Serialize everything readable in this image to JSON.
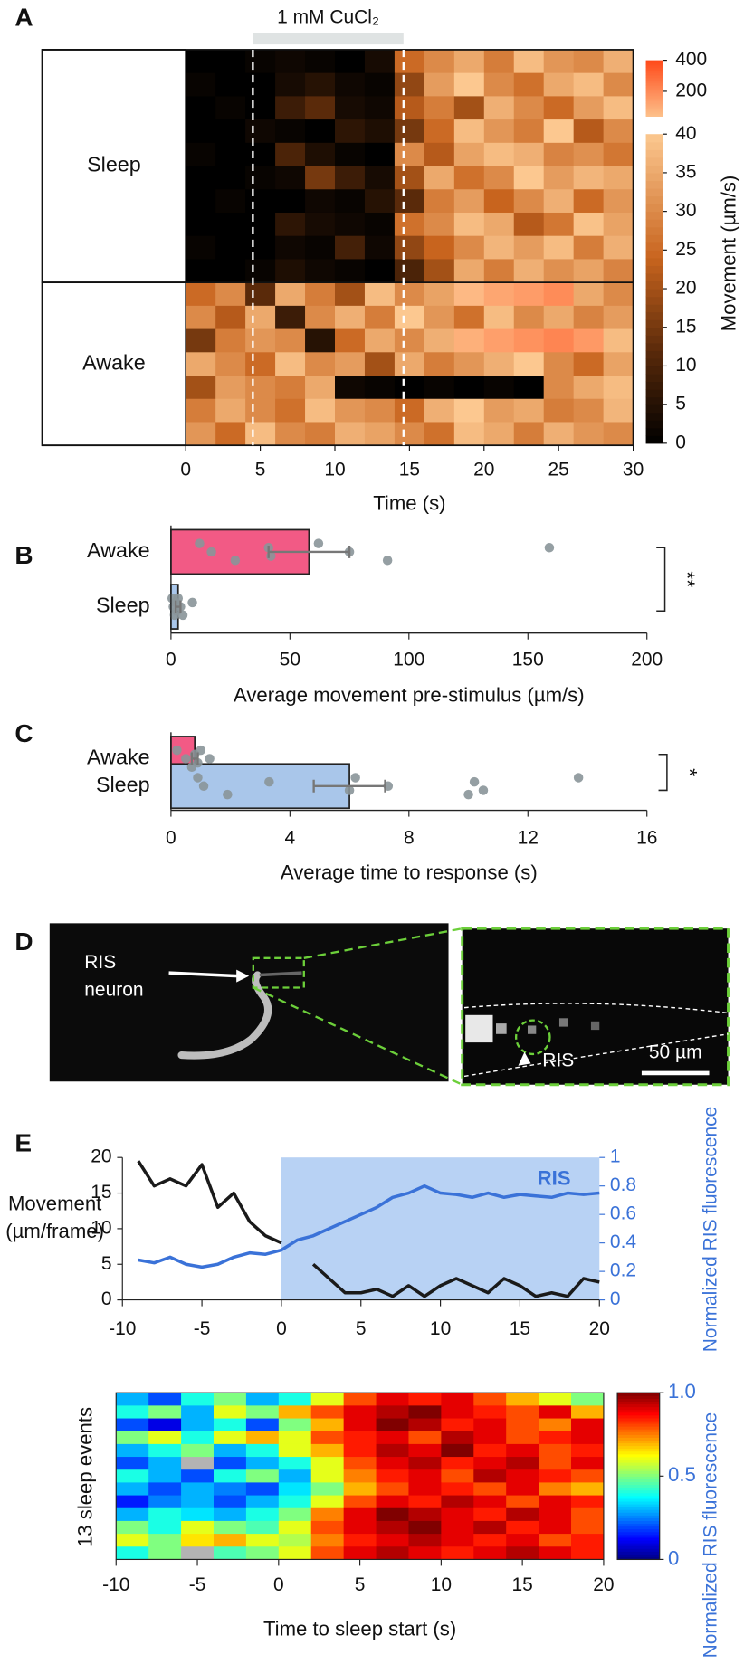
{
  "panel_labels": [
    "A",
    "B",
    "C",
    "D",
    "E"
  ],
  "image_panel": {
    "callout": [
      "RIS",
      "neuron"
    ],
    "inset_label": "RIS",
    "scale_bar": "50 µm"
  },
  "chart_data": [
    {
      "type": "heatmap",
      "annotation": "1 mM CuCl₂",
      "stimulus_window": [
        4.5,
        14.6
      ],
      "xlabel": "Time (s)",
      "xlim": [
        0,
        30
      ],
      "xticks": [
        0,
        5,
        10,
        15,
        20,
        25,
        30
      ],
      "xbins": [
        0,
        2,
        4,
        6,
        8,
        10,
        12,
        14,
        16,
        18,
        20,
        22,
        24,
        26,
        28,
        30
      ],
      "colorbar_label": "Movement (µm/s)",
      "cbar_segments": [
        [
          0,
          40
        ],
        [
          40,
          400
        ]
      ],
      "cbar_ticks": [
        0,
        5,
        10,
        15,
        20,
        25,
        30,
        35,
        40,
        200,
        400
      ],
      "groups": [
        {
          "name": "Sleep",
          "values": [
            [
              0,
              0,
              1,
              2,
              1,
              0,
              3,
              25,
              30,
              35,
              28,
              38,
              32,
              30,
              36
            ],
            [
              1,
              0,
              0,
              3,
              5,
              2,
              1,
              18,
              33,
              40,
              30,
              26,
              35,
              38,
              30
            ],
            [
              0,
              1,
              0,
              8,
              12,
              3,
              2,
              22,
              28,
              20,
              36,
              30,
              25,
              33,
              38
            ],
            [
              0,
              0,
              2,
              1,
              0,
              6,
              4,
              15,
              25,
              38,
              32,
              28,
              40,
              22,
              30
            ],
            [
              1,
              0,
              0,
              10,
              4,
              1,
              0,
              30,
              22,
              34,
              38,
              36,
              29,
              31,
              27
            ],
            [
              0,
              0,
              1,
              2,
              15,
              8,
              3,
              20,
              35,
              26,
              30,
              40,
              33,
              37,
              35
            ],
            [
              0,
              1,
              0,
              0,
              2,
              1,
              5,
              12,
              28,
              33,
              24,
              30,
              36,
              25,
              32
            ],
            [
              0,
              0,
              0,
              6,
              3,
              2,
              1,
              26,
              30,
              38,
              35,
              22,
              27,
              39,
              34
            ],
            [
              1,
              0,
              0,
              2,
              1,
              9,
              2,
              18,
              24,
              30,
              37,
              33,
              38,
              28,
              36
            ],
            [
              0,
              0,
              1,
              4,
              2,
              1,
              0,
              10,
              20,
              35,
              28,
              36,
              31,
              34,
              29
            ]
          ]
        },
        {
          "name": "Awake",
          "values": [
            [
              25,
              30,
              12,
              35,
              28,
              20,
              38,
              30,
              34,
              60,
              120,
              150,
              200,
              35,
              30
            ],
            [
              30,
              22,
              35,
              8,
              30,
              36,
              28,
              40,
              32,
              26,
              38,
              30,
              35,
              29,
              33
            ],
            [
              15,
              28,
              32,
              30,
              5,
              25,
              35,
              30,
              36,
              90,
              140,
              180,
              220,
              160,
              38
            ],
            [
              35,
              30,
              25,
              38,
              30,
              33,
              20,
              35,
              28,
              32,
              36,
              40,
              30,
              25,
              34
            ],
            [
              20,
              33,
              30,
              28,
              35,
              2,
              1,
              0,
              1,
              0,
              1,
              0,
              30,
              35,
              38
            ],
            [
              28,
              35,
              30,
              26,
              38,
              32,
              30,
              25,
              36,
              40,
              33,
              35,
              28,
              30,
              37
            ],
            [
              32,
              25,
              38,
              30,
              28,
              36,
              34,
              30,
              26,
              38,
              35,
              28,
              36,
              32,
              30
            ]
          ]
        }
      ]
    },
    {
      "type": "barh",
      "xlabel": "Average movement pre-stimulus (µm/s)",
      "xlim": [
        0,
        200
      ],
      "xticks": [
        0,
        50,
        100,
        150,
        200
      ],
      "categories": [
        "Awake",
        "Sleep"
      ],
      "values": [
        58,
        3
      ],
      "errors": [
        17,
        1
      ],
      "colors": [
        "#f25a85",
        "#a9c6ea"
      ],
      "points": [
        [
          12,
          17,
          27,
          41,
          42,
          62,
          75,
          91,
          159
        ],
        [
          0.5,
          1,
          1.5,
          2,
          2.5,
          3,
          4,
          5,
          9
        ]
      ],
      "significance": "**"
    },
    {
      "type": "barh",
      "xlabel": "Average time to response (s)",
      "xlim": [
        0,
        16
      ],
      "xticks": [
        0,
        4,
        8,
        12,
        16
      ],
      "categories": [
        "Awake",
        "Sleep"
      ],
      "values": [
        0.8,
        6.0
      ],
      "errors": [
        0.1,
        1.2
      ],
      "colors": [
        "#f25a85",
        "#a9c6ea"
      ],
      "points": [
        [
          0.2,
          0.5,
          0.7,
          0.8,
          0.9,
          1.0,
          1.3
        ],
        [
          0.9,
          1.1,
          1.9,
          3.3,
          6.0,
          6.2,
          7.3,
          10.0,
          10.2,
          10.5,
          13.7
        ]
      ],
      "significance": "*"
    },
    {
      "type": "line",
      "ylabel": [
        "Movement",
        "(µm/frame)"
      ],
      "y2label": "Normalized RIS fluorescence",
      "xlim": [
        -10,
        20
      ],
      "xticks": [
        -10,
        -5,
        0,
        5,
        10,
        15,
        20
      ],
      "ylim": [
        0,
        20
      ],
      "yticks": [
        0,
        5,
        10,
        15,
        20
      ],
      "y2lim": [
        0,
        1
      ],
      "y2ticks": [
        0,
        0.2,
        0.4,
        0.6,
        0.8,
        1
      ],
      "highlight": [
        0,
        20
      ],
      "x": [
        -9,
        -8,
        -7,
        -6,
        -5,
        -4,
        -3,
        -2,
        -1,
        0,
        1,
        2,
        3,
        4,
        5,
        6,
        7,
        8,
        9,
        10,
        11,
        12,
        13,
        14,
        15,
        16,
        17,
        18,
        19,
        20
      ],
      "series": [
        {
          "color": "#1a1a1a",
          "values": [
            19.5,
            16,
            17,
            16,
            19,
            13,
            15,
            11,
            9,
            8,
            null,
            5,
            3,
            1,
            1,
            1.5,
            0.5,
            2,
            0.5,
            2,
            3,
            2,
            1,
            3,
            2,
            0.5,
            1,
            0.5,
            3,
            2.5
          ]
        },
        {
          "name": "RIS",
          "color": "#3a72d8",
          "axis": "y2",
          "values": [
            0.28,
            0.26,
            0.3,
            0.25,
            0.23,
            0.25,
            0.3,
            0.33,
            0.32,
            0.35,
            0.42,
            0.45,
            0.5,
            0.55,
            0.6,
            0.65,
            0.72,
            0.75,
            0.8,
            0.75,
            0.74,
            0.72,
            0.75,
            0.72,
            0.74,
            0.73,
            0.72,
            0.75,
            0.74,
            0.75
          ]
        }
      ]
    },
    {
      "type": "heatmap",
      "ylabel": "13 sleep events",
      "xlabel": "Time to sleep start (s)",
      "xlim": [
        -10,
        20
      ],
      "xticks": [
        -10,
        -5,
        0,
        5,
        10,
        15,
        20
      ],
      "xbins": [
        -10,
        -8,
        -6,
        -4,
        -2,
        0,
        2,
        4,
        6,
        8,
        10,
        12,
        14,
        16,
        18,
        20
      ],
      "colorbar_label": "Normalized RIS fluorescence",
      "cbar_lim": [
        0,
        1
      ],
      "cbar_ticks": [
        0,
        0.5,
        {
          "value": 1,
          "label": "1.0"
        }
      ],
      "values": [
        [
          0.3,
          0.2,
          0.4,
          0.5,
          0.3,
          0.4,
          0.6,
          0.8,
          0.9,
          0.85,
          0.9,
          0.8,
          0.7,
          0.6,
          0.5
        ],
        [
          0.4,
          0.5,
          0.3,
          0.6,
          0.5,
          0.7,
          0.8,
          0.9,
          0.95,
          1.0,
          0.9,
          0.85,
          0.8,
          0.9,
          0.7
        ],
        [
          0.2,
          0.1,
          0.3,
          0.4,
          0.2,
          0.5,
          0.7,
          0.9,
          1.0,
          0.95,
          0.85,
          0.9,
          0.8,
          0.75,
          0.9
        ],
        [
          0.5,
          0.6,
          0.4,
          0.6,
          0.7,
          0.6,
          0.8,
          0.85,
          0.9,
          0.8,
          0.95,
          0.9,
          0.8,
          0.85,
          0.9
        ],
        [
          0.3,
          0.4,
          0.5,
          0.3,
          0.4,
          0.6,
          0.7,
          0.85,
          0.95,
          0.9,
          1.0,
          0.85,
          0.9,
          0.8,
          0.85
        ],
        [
          0.2,
          0.3,
          null,
          0.2,
          0.3,
          0.4,
          0.6,
          0.8,
          0.9,
          0.95,
          0.85,
          0.9,
          0.95,
          0.8,
          0.9
        ],
        [
          0.4,
          0.3,
          0.2,
          0.4,
          0.5,
          0.3,
          0.6,
          0.75,
          0.85,
          0.9,
          0.8,
          0.95,
          0.9,
          0.85,
          0.8
        ],
        [
          0.3,
          0.2,
          0.3,
          0.25,
          0.2,
          0.35,
          0.5,
          0.7,
          0.8,
          0.9,
          0.85,
          0.8,
          0.9,
          0.75,
          0.7
        ],
        [
          0.15,
          0.25,
          0.3,
          0.2,
          0.3,
          0.4,
          0.6,
          0.8,
          0.9,
          0.85,
          0.95,
          0.9,
          0.8,
          0.9,
          0.85
        ],
        [
          0.3,
          0.4,
          0.35,
          0.3,
          0.4,
          0.5,
          0.75,
          0.9,
          1.0,
          0.95,
          0.9,
          0.85,
          0.95,
          0.9,
          0.8
        ],
        [
          0.5,
          0.4,
          0.6,
          0.5,
          0.45,
          0.6,
          0.8,
          0.9,
          0.95,
          1.0,
          0.9,
          0.95,
          0.85,
          0.9,
          0.8
        ],
        [
          0.6,
          0.5,
          0.65,
          0.7,
          0.6,
          0.55,
          0.75,
          0.85,
          0.9,
          0.95,
          0.9,
          0.85,
          0.9,
          0.8,
          0.85
        ],
        [
          0.4,
          0.5,
          null,
          0.45,
          0.5,
          0.6,
          0.8,
          0.9,
          0.95,
          0.9,
          0.85,
          0.9,
          0.95,
          0.9,
          0.85
        ]
      ]
    }
  ]
}
